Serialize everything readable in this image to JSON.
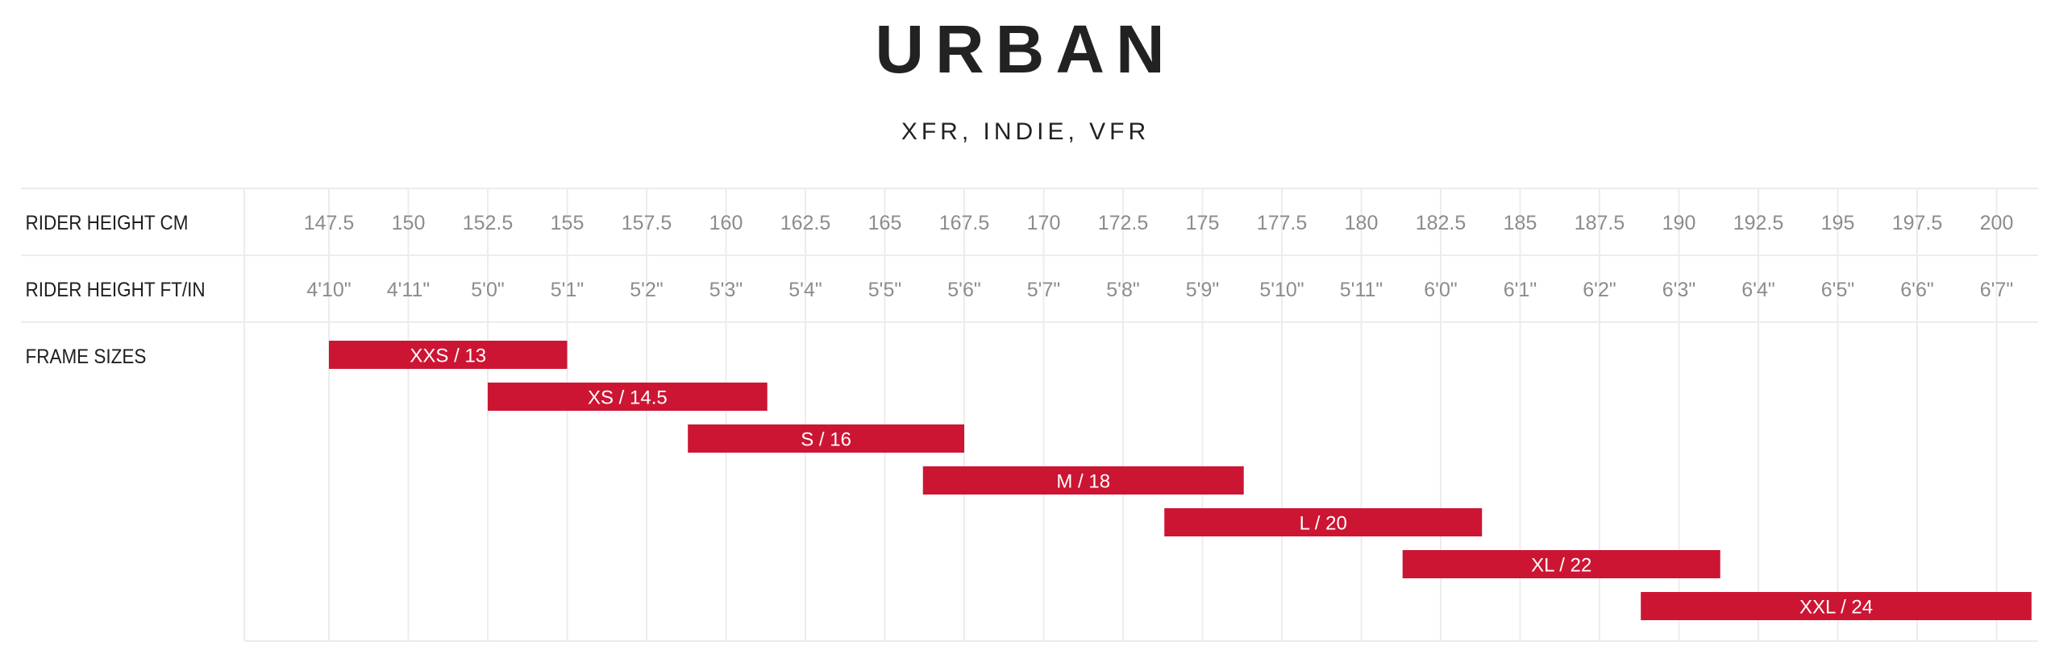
{
  "chart_data": {
    "type": "bar",
    "title": "URBAN",
    "subtitle": "XFR, INDIE, VFR",
    "row_labels": {
      "cm": "RIDER HEIGHT CM",
      "ftin": "RIDER HEIGHT FT/IN",
      "frames": "FRAME SIZES"
    },
    "x_cm": [
      147.5,
      150,
      152.5,
      155,
      157.5,
      160,
      162.5,
      165,
      167.5,
      170,
      172.5,
      175,
      177.5,
      180,
      182.5,
      185,
      187.5,
      190,
      192.5,
      195,
      197.5,
      200
    ],
    "x_cm_labels": [
      "147.5",
      "150",
      "152.5",
      "155",
      "157.5",
      "160",
      "162.5",
      "165",
      "167.5",
      "170",
      "172.5",
      "175",
      "177.5",
      "180",
      "182.5",
      "185",
      "187.5",
      "190",
      "192.5",
      "195",
      "197.5",
      "200"
    ],
    "x_ftin_labels": [
      "4'10\"",
      "4'11\"",
      "5'0\"",
      "5'1\"",
      "5'2\"",
      "5'3\"",
      "5'4\"",
      "5'5\"",
      "5'6\"",
      "5'7\"",
      "5'8\"",
      "5'9\"",
      "5'10\"",
      "5'11\"",
      "6'0\"",
      "6'1\"",
      "6'2\"",
      "6'3\"",
      "6'4\"",
      "6'5\"",
      "6'6\"",
      "6'7\""
    ],
    "xlim": [
      145,
      201
    ],
    "bars": [
      {
        "label": "XXS / 13",
        "start": 147.5,
        "end": 155
      },
      {
        "label": "XS / 14.5",
        "start": 152.5,
        "end": 161.3
      },
      {
        "label": "S / 16",
        "start": 158.8,
        "end": 167.5
      },
      {
        "label": "M / 18",
        "start": 166.2,
        "end": 176.3
      },
      {
        "label": "L / 20",
        "start": 173.8,
        "end": 183.8
      },
      {
        "label": "XL / 22",
        "start": 181.3,
        "end": 191.3
      },
      {
        "label": "XXL / 24",
        "start": 188.8,
        "end": 201.1
      }
    ],
    "bar_color": "#cc1533",
    "grid": true
  }
}
